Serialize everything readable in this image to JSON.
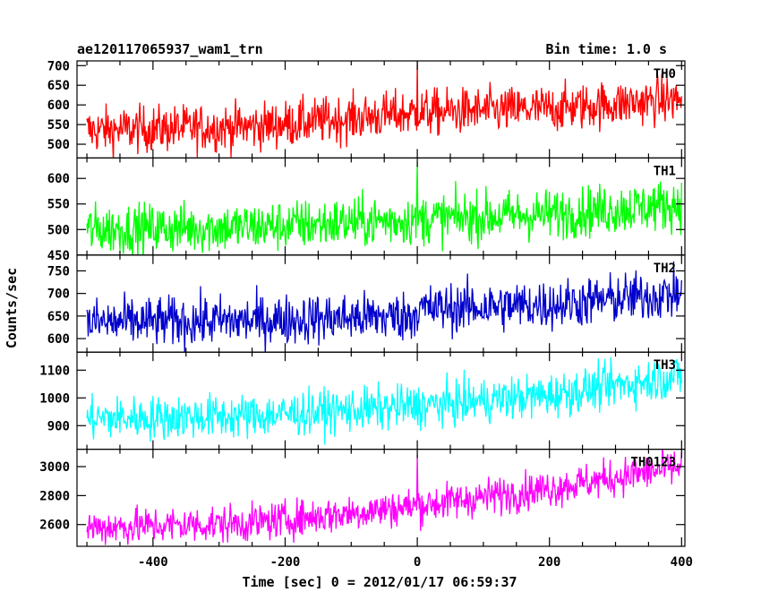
{
  "header": {
    "file_label": "ae120117065937_wam1_trn",
    "bin_label": "Bin time: 1.0 s"
  },
  "chart_data": {
    "type": "line",
    "xlabel": "Time [sec] 0 = 2012/01/17 06:59:37",
    "ylabel": "Counts/sec",
    "xlim": [
      -515,
      405
    ],
    "xticks": [
      -400,
      -200,
      0,
      200,
      400
    ],
    "x_range_data": [
      -500,
      400
    ],
    "grid": false,
    "panels": [
      {
        "name": "TH0",
        "color": "#ff0000",
        "ylim": [
          465,
          712
        ],
        "yticks": [
          500,
          550,
          600,
          650,
          700
        ],
        "trend": [
          [
            -500,
            535
          ],
          [
            -250,
            545
          ],
          [
            0,
            580
          ],
          [
            200,
            590
          ],
          [
            400,
            615
          ]
        ],
        "noise": 30,
        "spikes": [
          [
            0,
            712
          ]
        ]
      },
      {
        "name": "TH1",
        "color": "#00ff00",
        "ylim": [
          450,
          640
        ],
        "yticks": [
          450,
          500,
          550,
          600
        ],
        "trend": [
          [
            -500,
            500
          ],
          [
            -250,
            505
          ],
          [
            0,
            520
          ],
          [
            200,
            530
          ],
          [
            400,
            550
          ]
        ],
        "noise": 25,
        "spikes": [
          [
            0,
            632
          ]
        ]
      },
      {
        "name": "TH2",
        "color": "#0000cc",
        "ylim": [
          570,
          785
        ],
        "yticks": [
          600,
          650,
          700,
          750
        ],
        "trend": [
          [
            -500,
            635
          ],
          [
            -250,
            640
          ],
          [
            -10,
            650
          ],
          [
            0,
            665
          ],
          [
            200,
            675
          ],
          [
            400,
            700
          ]
        ],
        "noise": 28,
        "spikes": []
      },
      {
        "name": "TH3",
        "color": "#00ffff",
        "ylim": [
          815,
          1165
        ],
        "yticks": [
          900,
          1000,
          1100
        ],
        "trend": [
          [
            -500,
            925
          ],
          [
            -250,
            935
          ],
          [
            0,
            970
          ],
          [
            200,
            1010
          ],
          [
            400,
            1080
          ]
        ],
        "noise": 40,
        "spikes": []
      },
      {
        "name": "TH0123",
        "color": "#ff00ff",
        "ylim": [
          2450,
          3120
        ],
        "yticks": [
          2600,
          2800,
          3000
        ],
        "trend": [
          [
            -500,
            2580
          ],
          [
            -250,
            2610
          ],
          [
            0,
            2730
          ],
          [
            200,
            2850
          ],
          [
            400,
            3000
          ]
        ],
        "noise": 65,
        "spikes": [
          [
            0,
            3080
          ]
        ]
      }
    ]
  }
}
